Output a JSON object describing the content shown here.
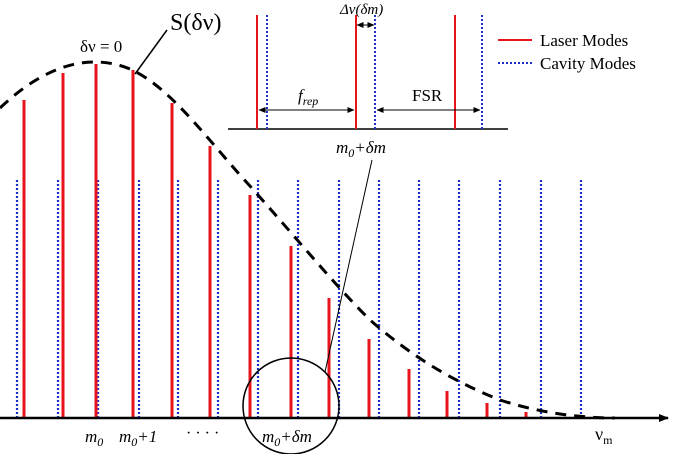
{
  "labels": {
    "delta_nu_zero": "δν = 0",
    "envelope": "S(δν)",
    "axis": "ν",
    "axis_sub": "m",
    "m0": "m",
    "m0_sub": "0",
    "m0p1_sub": "0",
    "m0p1_rest": "+1",
    "ellipsis": "· · · ·",
    "m0dm_sub": "0",
    "m0dm_rest": "+δm",
    "inset_m0dm_sub": "0",
    "inset_m0dm_rest": "+δm",
    "frep": "f",
    "frep_sub": "rep",
    "fsr": "FSR",
    "dnu": "Δν(δm)"
  },
  "legend": [
    {
      "label": "Laser Modes",
      "color": "#e8141c",
      "style": "solid"
    },
    {
      "label": "Cavity Modes",
      "color": "#1a2fc8",
      "style": "dotted"
    }
  ],
  "colors": {
    "laser": "#e8141c",
    "cavity": "#1a2fc8",
    "ink": "#000000"
  }
}
